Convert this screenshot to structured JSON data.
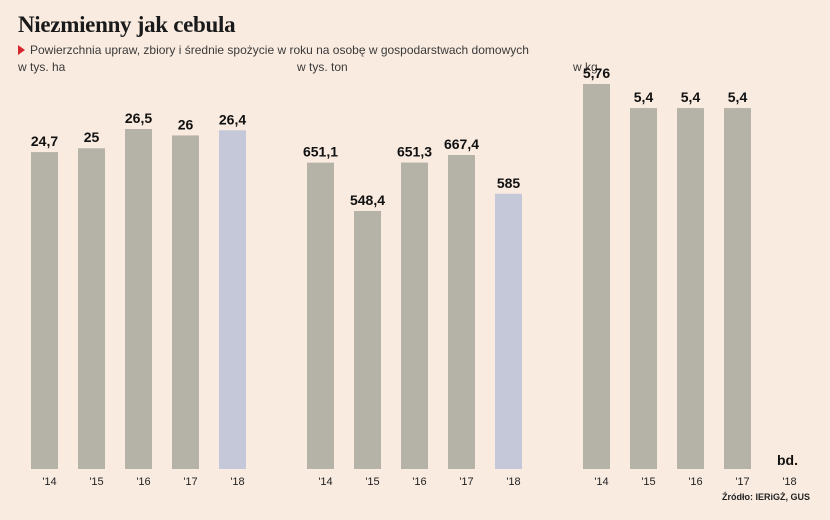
{
  "header": {
    "title": "Niezmienny jak cebula",
    "subtitle": "Powierzchnia upraw, zbiory i średnie spożycie w roku na osobę w gospodarstwach domowych"
  },
  "source": "Źródło: IERiGŻ, GUS",
  "colors": {
    "bar": "#b5b3a8",
    "highlight": "#c4c8d8",
    "background": "#f9ebe0",
    "accent": "#d7262b"
  },
  "chart_data": [
    {
      "type": "bar",
      "unit": "w tys. ha",
      "categories": [
        "'14",
        "'15",
        "'16",
        "'17",
        "'18"
      ],
      "values": [
        24.7,
        25,
        26.5,
        26,
        26.4
      ],
      "labels": [
        "24,7",
        "25",
        "26,5",
        "26",
        "26,4"
      ],
      "highlight_index": 4
    },
    {
      "type": "bar",
      "unit": "w tys. ton",
      "categories": [
        "'14",
        "'15",
        "'16",
        "'17",
        "'18"
      ],
      "values": [
        651.1,
        548.4,
        651.3,
        667.4,
        585
      ],
      "labels": [
        "651,1",
        "548,4",
        "651,3",
        "667,4",
        "585"
      ],
      "highlight_index": 4
    },
    {
      "type": "bar",
      "unit": "w kg",
      "categories": [
        "'14",
        "'15",
        "'16",
        "'17",
        "'18"
      ],
      "values": [
        5.76,
        5.4,
        5.4,
        5.4,
        null
      ],
      "labels": [
        "5,76",
        "5,4",
        "5,4",
        "5,4",
        "bd."
      ],
      "highlight_index": null
    }
  ]
}
